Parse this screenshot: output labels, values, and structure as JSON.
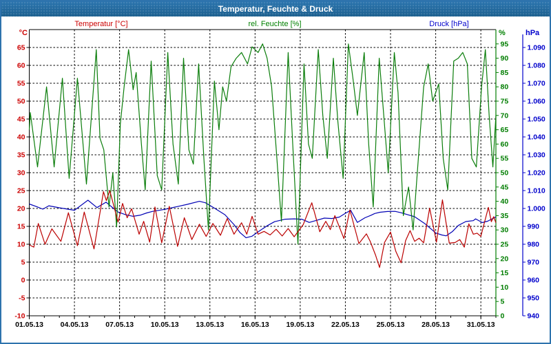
{
  "window": {
    "title": "Temperatur, Feuchte & Druck"
  },
  "chart_data": {
    "type": "line",
    "title": "Temperatur, Feuchte & Druck",
    "grid": "dashed-both-axes",
    "x_axis": {
      "labels": [
        "01.05.13",
        "04.05.13",
        "07.05.13",
        "10.05.13",
        "13.05.13",
        "16.05.13",
        "19.05.13",
        "22.05.13",
        "25.05.13",
        "28.05.13",
        "31.05.13"
      ],
      "major_tick_days": [
        0,
        3,
        6,
        9,
        12,
        15,
        18,
        21,
        24,
        27,
        30
      ],
      "minor_tick_interval_days": 1,
      "range_days": [
        0,
        31
      ]
    },
    "axes": {
      "temperature": {
        "label": "Temperatur [°C]",
        "unit": "°C",
        "color": "#cc0000",
        "min": -10,
        "max": 70,
        "ticks": [
          65,
          60,
          55,
          50,
          45,
          40,
          35,
          30,
          25,
          20,
          15,
          10,
          5,
          0,
          -5,
          -10
        ]
      },
      "humidity": {
        "label": "rel. Feuchte [%]",
        "unit": "%",
        "color": "#008000",
        "min": 0,
        "max": 100,
        "ticks": [
          95,
          90,
          85,
          80,
          75,
          70,
          65,
          60,
          55,
          50,
          45,
          40,
          35,
          30,
          25,
          20,
          15,
          10,
          5,
          0
        ]
      },
      "pressure": {
        "label": "Druck [hPa]",
        "unit": "hPa",
        "color": "#0000cc",
        "min": 940,
        "max": 1100,
        "tick_values": [
          1090,
          1080,
          1070,
          1060,
          1050,
          1040,
          1030,
          1020,
          1010,
          1000,
          990,
          980,
          970,
          960,
          950,
          940
        ],
        "tick_labels": [
          "1.090",
          "1.080",
          "1.070",
          "1.060",
          "1.050",
          "1.040",
          "1.030",
          "1.020",
          "1.010",
          "1.000",
          "990",
          "980",
          "970",
          "960",
          "950",
          "940"
        ]
      }
    },
    "series": [
      {
        "name": "Druck",
        "axis": "pressure",
        "color": "#0000b4",
        "points": [
          [
            0,
            1002.5
          ],
          [
            0.5,
            1001
          ],
          [
            0.9,
            999.6
          ],
          [
            1.3,
            1001.5
          ],
          [
            2,
            1000.4
          ],
          [
            3,
            999
          ],
          [
            3.9,
            1004.6
          ],
          [
            4.5,
            1000.5
          ],
          [
            5.1,
            1003.5
          ],
          [
            5.6,
            1000
          ],
          [
            5.9,
            998
          ],
          [
            6.4,
            996.5
          ],
          [
            6.9,
            995.6
          ],
          [
            7.4,
            996.3
          ],
          [
            7.8,
            997.5
          ],
          [
            8.2,
            998.4
          ],
          [
            9,
            999.5
          ],
          [
            9.8,
            1001
          ],
          [
            10.5,
            1002.3
          ],
          [
            11.3,
            1004
          ],
          [
            11.7,
            1003.2
          ],
          [
            12.3,
            1000.2
          ],
          [
            13,
            996.5
          ],
          [
            13.6,
            991
          ],
          [
            14,
            986.5
          ],
          [
            14.4,
            983.6
          ],
          [
            14.8,
            984.5
          ],
          [
            15.3,
            987.5
          ],
          [
            15.8,
            990.3
          ],
          [
            16.3,
            992.6
          ],
          [
            17,
            994
          ],
          [
            17.6,
            994.2
          ],
          [
            18.1,
            994
          ],
          [
            18.6,
            992.2
          ],
          [
            19.1,
            993.4
          ],
          [
            19.6,
            994.6
          ],
          [
            20.1,
            994.4
          ],
          [
            20.6,
            995.2
          ],
          [
            21,
            997.3
          ],
          [
            21.35,
            999
          ],
          [
            21.8,
            992.2
          ],
          [
            22.3,
            994.8
          ],
          [
            22.7,
            996.2
          ],
          [
            22.95,
            997.2
          ],
          [
            23.3,
            997.9
          ],
          [
            23.8,
            998.3
          ],
          [
            24.3,
            998.4
          ],
          [
            24.7,
            997.6
          ],
          [
            25.1,
            996.6
          ],
          [
            25.6,
            995.4
          ],
          [
            26.3,
            991.4
          ],
          [
            27,
            986.3
          ],
          [
            27.4,
            985.2
          ],
          [
            27.7,
            984.7
          ],
          [
            28.1,
            987
          ],
          [
            28.5,
            990.5
          ],
          [
            29,
            992.7
          ],
          [
            29.5,
            993.2
          ],
          [
            29.65,
            994.2
          ],
          [
            30.1,
            992.1
          ],
          [
            30.45,
            992.9
          ],
          [
            31,
            995.3
          ]
        ]
      },
      {
        "name": "rel. Feuchte",
        "axis": "humidity",
        "color": "#0a7d0a",
        "points": [
          [
            0,
            65
          ],
          [
            0.07,
            71
          ],
          [
            0.55,
            52
          ],
          [
            1.15,
            80
          ],
          [
            1.65,
            52
          ],
          [
            2.2,
            83
          ],
          [
            2.65,
            48
          ],
          [
            3.2,
            83
          ],
          [
            3.8,
            46
          ],
          [
            4.45,
            93
          ],
          [
            4.7,
            62
          ],
          [
            4.95,
            58
          ],
          [
            5.3,
            38
          ],
          [
            5.55,
            50
          ],
          [
            5.8,
            31
          ],
          [
            6.05,
            67
          ],
          [
            6.3,
            80
          ],
          [
            6.6,
            93
          ],
          [
            6.9,
            79
          ],
          [
            7.1,
            85
          ],
          [
            7.45,
            60
          ],
          [
            7.7,
            44
          ],
          [
            8.1,
            89
          ],
          [
            8.5,
            49
          ],
          [
            8.8,
            44
          ],
          [
            9.2,
            92
          ],
          [
            9.55,
            60
          ],
          [
            9.9,
            46
          ],
          [
            10.25,
            90
          ],
          [
            10.6,
            58
          ],
          [
            10.9,
            53
          ],
          [
            11.25,
            88
          ],
          [
            11.6,
            55
          ],
          [
            11.9,
            30
          ],
          [
            12.3,
            82
          ],
          [
            12.6,
            65
          ],
          [
            12.85,
            80
          ],
          [
            13.1,
            75
          ],
          [
            13.4,
            87
          ],
          [
            13.75,
            90
          ],
          [
            14.1,
            92
          ],
          [
            14.5,
            88
          ],
          [
            14.8,
            94
          ],
          [
            15.2,
            92
          ],
          [
            15.5,
            95
          ],
          [
            15.8,
            90
          ],
          [
            16.1,
            80
          ],
          [
            16.45,
            55
          ],
          [
            16.75,
            33
          ],
          [
            17.2,
            92
          ],
          [
            17.5,
            60
          ],
          [
            17.85,
            25
          ],
          [
            18.25,
            88
          ],
          [
            18.55,
            60
          ],
          [
            18.8,
            55
          ],
          [
            19.2,
            93
          ],
          [
            19.5,
            70
          ],
          [
            19.8,
            55
          ],
          [
            20.2,
            90
          ],
          [
            20.5,
            68
          ],
          [
            20.85,
            48
          ],
          [
            21.2,
            95
          ],
          [
            21.5,
            83
          ],
          [
            21.8,
            70
          ],
          [
            22.25,
            92
          ],
          [
            22.55,
            60
          ],
          [
            22.85,
            38
          ],
          [
            23.25,
            90
          ],
          [
            23.55,
            70
          ],
          [
            23.85,
            50
          ],
          [
            24.25,
            92
          ],
          [
            24.5,
            78
          ],
          [
            24.85,
            35
          ],
          [
            25.2,
            45
          ],
          [
            25.5,
            30
          ],
          [
            25.85,
            55
          ],
          [
            26.2,
            80
          ],
          [
            26.5,
            88
          ],
          [
            26.8,
            75
          ],
          [
            27.2,
            81
          ],
          [
            27.5,
            55
          ],
          [
            27.8,
            44
          ],
          [
            28.2,
            89
          ],
          [
            28.5,
            90
          ],
          [
            28.8,
            92
          ],
          [
            29.1,
            88
          ],
          [
            29.4,
            55
          ],
          [
            29.7,
            52
          ],
          [
            30.05,
            80
          ],
          [
            30.3,
            93
          ],
          [
            30.55,
            70
          ],
          [
            30.8,
            52
          ],
          [
            31,
            70
          ]
        ]
      },
      {
        "name": "Temperatur",
        "axis": "temperature",
        "color": "#bb0000",
        "points": [
          [
            0,
            9.8
          ],
          [
            0.3,
            9.2
          ],
          [
            0.6,
            15.8
          ],
          [
            1.05,
            10
          ],
          [
            1.5,
            14.3
          ],
          [
            2.1,
            10.8
          ],
          [
            2.6,
            18.8
          ],
          [
            3.2,
            9.6
          ],
          [
            3.65,
            19
          ],
          [
            4.3,
            8.7
          ],
          [
            4.93,
            24.7
          ],
          [
            5.12,
            22.2
          ],
          [
            5.35,
            25
          ],
          [
            5.9,
            16.2
          ],
          [
            6.2,
            21.4
          ],
          [
            6.5,
            17.4
          ],
          [
            6.8,
            19.9
          ],
          [
            7.3,
            12.8
          ],
          [
            7.6,
            16.4
          ],
          [
            8,
            10.6
          ],
          [
            8.35,
            20.4
          ],
          [
            8.8,
            10.4
          ],
          [
            9.3,
            20.6
          ],
          [
            9.85,
            9.4
          ],
          [
            10.3,
            17.4
          ],
          [
            10.8,
            11.3
          ],
          [
            11.3,
            15.6
          ],
          [
            11.75,
            12.2
          ],
          [
            12.2,
            15.8
          ],
          [
            12.7,
            12.5
          ],
          [
            13.15,
            17.2
          ],
          [
            13.6,
            12.8
          ],
          [
            14.1,
            16
          ],
          [
            14.45,
            12.8
          ],
          [
            14.8,
            17.8
          ],
          [
            15.2,
            12.8
          ],
          [
            15.6,
            13.6
          ],
          [
            16,
            12.6
          ],
          [
            16.4,
            14.2
          ],
          [
            16.8,
            12.3
          ],
          [
            17.2,
            14.4
          ],
          [
            17.6,
            12.1
          ],
          [
            18.2,
            15.5
          ],
          [
            18.77,
            21.6
          ],
          [
            19.3,
            13.5
          ],
          [
            19.7,
            16.4
          ],
          [
            20,
            14.1
          ],
          [
            20.3,
            18
          ],
          [
            20.9,
            11.6
          ],
          [
            21.3,
            19.6
          ],
          [
            21.9,
            10.2
          ],
          [
            22.4,
            12.9
          ],
          [
            22.65,
            10.8
          ],
          [
            23,
            7
          ],
          [
            23.27,
            3.5
          ],
          [
            23.6,
            10.5
          ],
          [
            24,
            13.4
          ],
          [
            24.35,
            8
          ],
          [
            24.7,
            4.8
          ],
          [
            25,
            11
          ],
          [
            25.3,
            13.8
          ],
          [
            25.6,
            10.8
          ],
          [
            25.9,
            11.7
          ],
          [
            26.2,
            10.4
          ],
          [
            26.6,
            20.1
          ],
          [
            27.05,
            10.6
          ],
          [
            27.45,
            22.4
          ],
          [
            27.9,
            10.3
          ],
          [
            28.3,
            10.5
          ],
          [
            28.6,
            11.3
          ],
          [
            28.9,
            9.2
          ],
          [
            29.2,
            15.7
          ],
          [
            29.5,
            12.8
          ],
          [
            29.75,
            13.1
          ],
          [
            30,
            12.2
          ],
          [
            30.5,
            20.3
          ],
          [
            30.7,
            16.3
          ],
          [
            30.85,
            17.7
          ],
          [
            31,
            16
          ]
        ]
      }
    ]
  }
}
